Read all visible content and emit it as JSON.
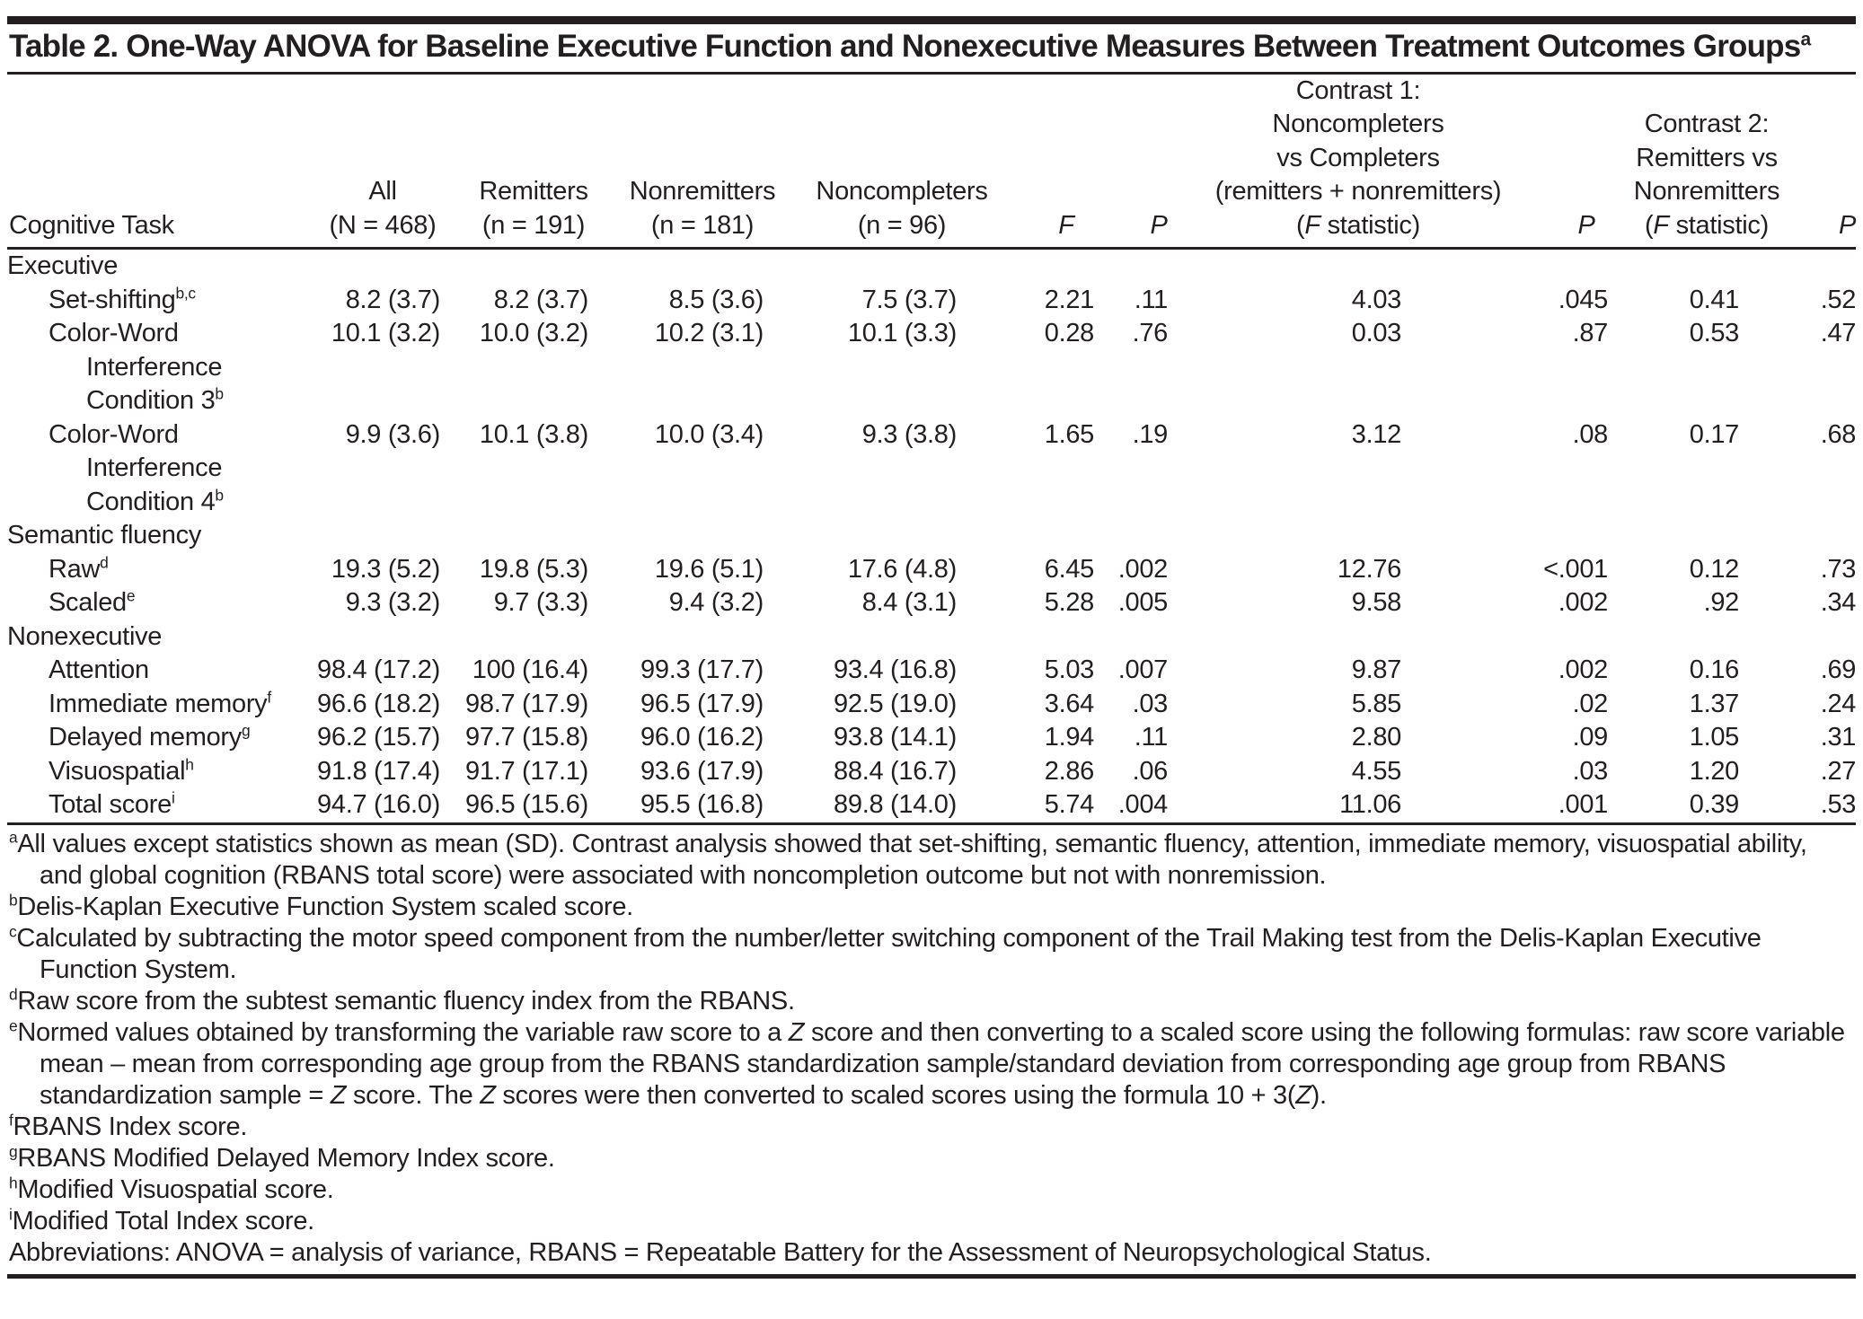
{
  "title": {
    "text": "Table 2. One-Way ANOVA for Baseline Executive Function and Nonexecutive Measures Between Treatment Outcomes Groups",
    "sup": "a"
  },
  "header": {
    "cognitive_task": "Cognitive Task",
    "groups": [
      {
        "name": "all",
        "lines": [
          "All",
          "(N = 468)"
        ]
      },
      {
        "name": "remitters",
        "lines": [
          "Remitters",
          "(n = 191)"
        ]
      },
      {
        "name": "nonremitters",
        "lines": [
          "Nonremitters",
          "(n = 181)"
        ]
      },
      {
        "name": "noncompleters",
        "lines": [
          "Noncompleters",
          "(n = 96)"
        ]
      },
      {
        "name": "f",
        "lines": [
          "F"
        ]
      },
      {
        "name": "p",
        "lines": [
          "P"
        ]
      },
      {
        "name": "contrast1",
        "lines": [
          "Contrast 1:",
          "Noncompleters",
          "vs Completers",
          "(remitters + nonremitters)",
          "(F statistic)"
        ]
      },
      {
        "name": "p-contrast1",
        "lines": [
          "P"
        ]
      },
      {
        "name": "contrast2",
        "lines": [
          "Contrast 2:",
          "Remitters vs",
          "Nonremitters",
          "(F statistic)"
        ]
      },
      {
        "name": "p-contrast2",
        "lines": [
          "P"
        ]
      }
    ],
    "value_column_keys": [
      "all",
      "remitters",
      "nonremitters",
      "noncompleters",
      "f",
      "p",
      "contrast1-f",
      "contrast1-p",
      "contrast2-f",
      "contrast2-p"
    ]
  },
  "rows": [
    {
      "type": "section",
      "lines": [
        "Executive"
      ],
      "sup": "",
      "values": []
    },
    {
      "type": "item",
      "lines": [
        "Set-shifting"
      ],
      "sup": "b,c",
      "values": [
        "8.2 (3.7)",
        "8.2 (3.7)",
        "8.5 (3.6)",
        "7.5 (3.7)",
        "2.21",
        ".11",
        "4.03",
        ".045",
        "0.41",
        ".52"
      ]
    },
    {
      "type": "item",
      "lines": [
        "Color-Word",
        "Interference",
        "Condition 3"
      ],
      "sup": "b",
      "values": [
        "10.1 (3.2)",
        "10.0 (3.2)",
        "10.2 (3.1)",
        "10.1 (3.3)",
        "0.28",
        ".76",
        "0.03",
        ".87",
        "0.53",
        ".47"
      ]
    },
    {
      "type": "item",
      "lines": [
        "Color-Word",
        "Interference",
        "Condition 4"
      ],
      "sup": "b",
      "values": [
        "9.9 (3.6)",
        "10.1 (3.8)",
        "10.0 (3.4)",
        "9.3 (3.8)",
        "1.65",
        ".19",
        "3.12",
        ".08",
        "0.17",
        ".68"
      ]
    },
    {
      "type": "section",
      "lines": [
        "Semantic fluency"
      ],
      "sup": "",
      "values": []
    },
    {
      "type": "item",
      "lines": [
        "Raw"
      ],
      "sup": "d",
      "values": [
        "19.3 (5.2)",
        "19.8 (5.3)",
        "19.6 (5.1)",
        "17.6 (4.8)",
        "6.45",
        ".002",
        "12.76",
        "<.001",
        "0.12",
        ".73"
      ]
    },
    {
      "type": "item",
      "lines": [
        "Scaled"
      ],
      "sup": "e",
      "values": [
        "9.3 (3.2)",
        "9.7 (3.3)",
        "9.4 (3.2)",
        "8.4 (3.1)",
        "5.28",
        ".005",
        "9.58",
        ".002",
        ".92",
        ".34"
      ]
    },
    {
      "type": "section",
      "lines": [
        "Nonexecutive"
      ],
      "sup": "",
      "values": []
    },
    {
      "type": "item",
      "lines": [
        "Attention"
      ],
      "sup": "",
      "values": [
        "98.4 (17.2)",
        "100 (16.4)",
        "99.3 (17.7)",
        "93.4 (16.8)",
        "5.03",
        ".007",
        "9.87",
        ".002",
        "0.16",
        ".69"
      ]
    },
    {
      "type": "item",
      "lines": [
        "Immediate memory"
      ],
      "sup": "f",
      "values": [
        "96.6 (18.2)",
        "98.7 (17.9)",
        "96.5 (17.9)",
        "92.5 (19.0)",
        "3.64",
        ".03",
        "5.85",
        ".02",
        "1.37",
        ".24"
      ]
    },
    {
      "type": "item",
      "lines": [
        "Delayed memory"
      ],
      "sup": "g",
      "values": [
        "96.2 (15.7)",
        "97.7 (15.8)",
        "96.0 (16.2)",
        "93.8 (14.1)",
        "1.94",
        ".11",
        "2.80",
        ".09",
        "1.05",
        ".31"
      ]
    },
    {
      "type": "item",
      "lines": [
        "Visuospatial"
      ],
      "sup": "h",
      "values": [
        "91.8 (17.4)",
        "91.7 (17.1)",
        "93.6 (17.9)",
        "88.4 (16.7)",
        "2.86",
        ".06",
        "4.55",
        ".03",
        "1.20",
        ".27"
      ]
    },
    {
      "type": "item",
      "lines": [
        "Total score"
      ],
      "sup": "i",
      "values": [
        "94.7 (16.0)",
        "96.5 (15.6)",
        "95.5 (16.8)",
        "89.8 (14.0)",
        "5.74",
        ".004",
        "11.06",
        ".001",
        "0.39",
        ".53"
      ]
    }
  ],
  "footnotes": [
    {
      "sup": "a",
      "text": "All values except statistics shown as mean (SD). Contrast analysis showed that set-shifting, semantic fluency, attention, immediate memory, visuospatial ability, and global cognition (RBANS total score) were associated with noncompletion outcome but not with nonremission."
    },
    {
      "sup": "b",
      "text": "Delis-Kaplan Executive Function System scaled score."
    },
    {
      "sup": "c",
      "text": "Calculated by subtracting the motor speed component from the number/letter switching component of the Trail Making test from the Delis-Kaplan Executive Function System."
    },
    {
      "sup": "d",
      "text": "Raw score from the subtest semantic fluency index from the RBANS."
    },
    {
      "sup": "e",
      "text": "Normed values obtained by transforming the variable raw score to a Z score and then converting to a scaled score using the following formulas: raw score variable mean – mean from corresponding age group from the RBANS standardization sample/standard deviation from corresponding age group from RBANS standardization sample = Z score. The Z scores were then converted to scaled scores using the formula 10 + 3(Z)."
    },
    {
      "sup": "f",
      "text": "RBANS Index score."
    },
    {
      "sup": "g",
      "text": "RBANS Modified Delayed Memory Index score."
    },
    {
      "sup": "h",
      "text": "Modified Visuospatial score."
    },
    {
      "sup": "i",
      "text": "Modified Total Index score."
    },
    {
      "sup": "",
      "text": "Abbreviations: ANOVA = analysis of variance, RBANS = Repeatable Battery for the Assessment of Neuropsychological Status."
    }
  ]
}
